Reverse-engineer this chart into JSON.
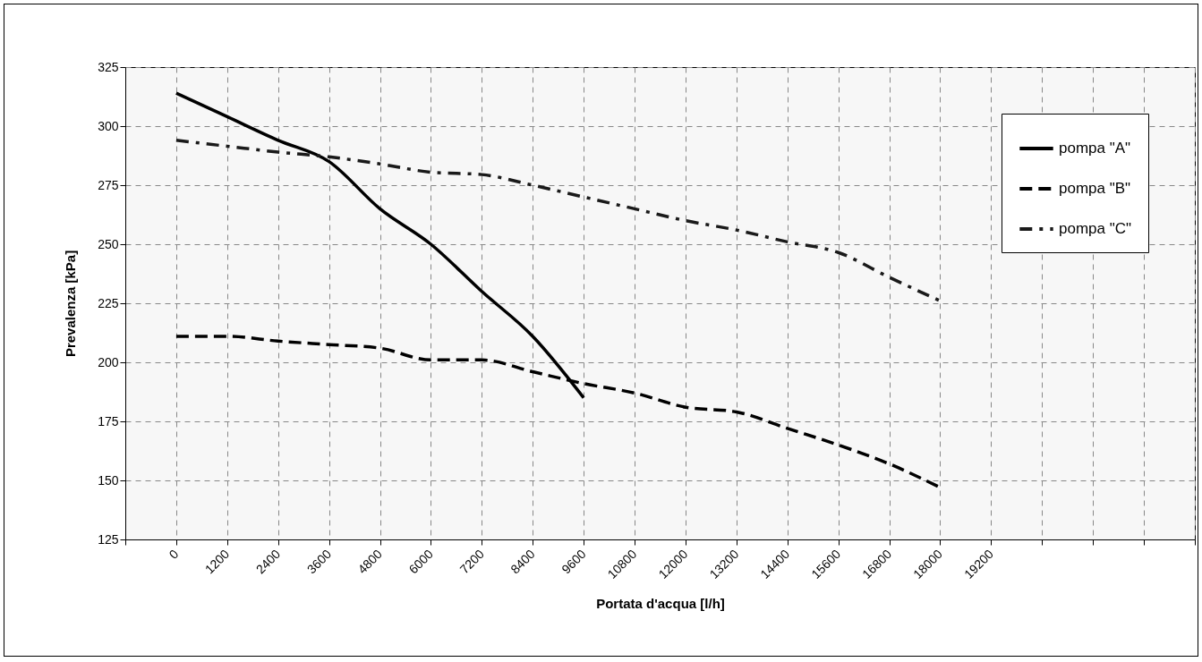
{
  "chart_data": {
    "type": "line",
    "xlabel": "Portata d'acqua   [l/h]",
    "ylabel": "Prevalenza   [kPa]",
    "x": [
      0,
      1200,
      2400,
      3600,
      4800,
      6000,
      7200,
      8400,
      9600,
      10800,
      12000,
      13200,
      14400,
      15600,
      16800,
      18000
    ],
    "series": [
      {
        "name": "pompa \"A\"",
        "color": "#000000",
        "line_style": "solid",
        "x": [
          0,
          1200,
          2400,
          3600,
          4800,
          6000,
          7200,
          8400,
          9600
        ],
        "values": [
          314,
          304,
          294,
          285,
          265,
          250,
          230,
          211,
          185
        ]
      },
      {
        "name": "pompa \"B\"",
        "color": "#000000",
        "line_style": "dashed",
        "values": [
          211,
          211,
          209,
          207.5,
          206,
          201,
          201,
          196,
          191,
          187,
          181,
          179,
          172,
          165,
          157,
          147
        ]
      },
      {
        "name": "pompa \"C\"",
        "color": "#1a1a1a",
        "line_style": "dashdot",
        "values": [
          294,
          291.5,
          289,
          287,
          284,
          280.5,
          279.5,
          275,
          270,
          265,
          260,
          256,
          251,
          246.5,
          236,
          226
        ]
      }
    ],
    "xlim": [
      -1200,
      24000
    ],
    "xticks": [
      {
        "value": -1200,
        "label": null
      },
      0,
      1200,
      2400,
      3600,
      4800,
      6000,
      7200,
      8400,
      9600,
      10800,
      12000,
      13200,
      14400,
      15600,
      16800,
      18000,
      19200,
      {
        "value": 20400,
        "label": null
      },
      {
        "value": 21600,
        "label": null
      },
      {
        "value": 22800,
        "label": null
      },
      {
        "value": 24000,
        "label": null
      }
    ],
    "ylim": [
      125,
      325
    ],
    "yticks": [
      125,
      150,
      175,
      200,
      225,
      250,
      275,
      300,
      325
    ],
    "grid": true,
    "legend": "top right",
    "marker": "none"
  }
}
